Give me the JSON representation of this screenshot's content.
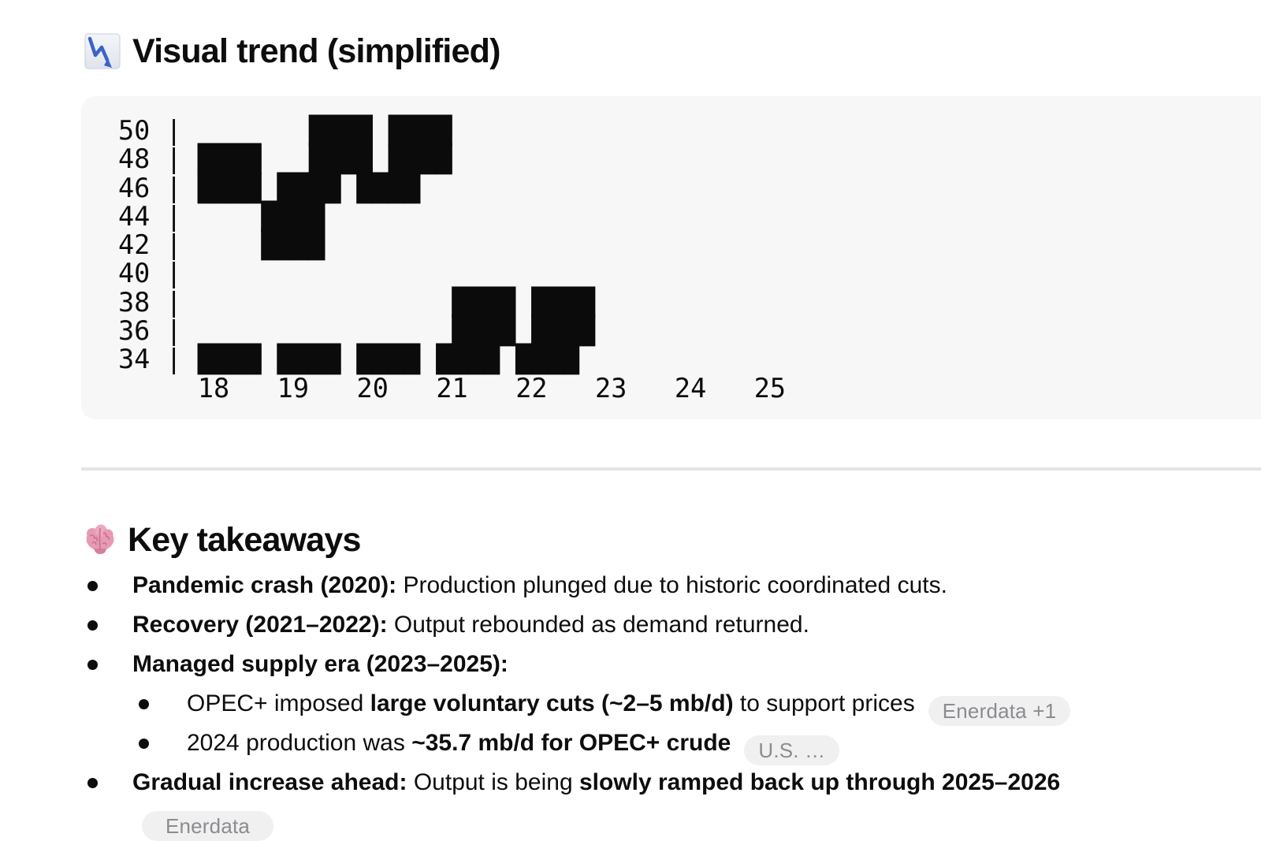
{
  "page": {
    "background": "#ffffff",
    "text_color": "#0d0d0d",
    "divider_color": "#e4e4e6"
  },
  "trend_section": {
    "icon": "chart-decreasing",
    "title": "Visual trend (simplified)",
    "code_block": {
      "background": "#f7f7f8",
      "lines": [
        "50 |        ████ ████",
        "48 | ████   ████ ████",
        "46 | ████ ████ ████",
        "44 |     ████",
        "42 |     ████",
        "40 |",
        "38 |                 ████ ████",
        "36 |                 ████ ████",
        "34 | ████ ████ ████ ████ ████",
        "     18   19   20   21   22   23   24   25"
      ]
    }
  },
  "chart_data": {
    "type": "heatmap",
    "title": "Visual trend (simplified)",
    "y_ticks": [
      50,
      48,
      46,
      44,
      42,
      40,
      38,
      36,
      34
    ],
    "x_ticks": [
      18,
      19,
      20,
      21,
      22,
      23,
      24,
      25
    ],
    "x_tick_start_cols": [
      5,
      10,
      15,
      20,
      25,
      30,
      35,
      40
    ],
    "blocks_by_row": [
      {
        "y": 50,
        "col_spans": [
          [
            12,
            15
          ],
          [
            17,
            20
          ]
        ]
      },
      {
        "y": 48,
        "col_spans": [
          [
            5,
            8
          ],
          [
            12,
            15
          ],
          [
            17,
            20
          ]
        ]
      },
      {
        "y": 46,
        "col_spans": [
          [
            5,
            8
          ],
          [
            10,
            13
          ],
          [
            15,
            18
          ]
        ]
      },
      {
        "y": 44,
        "col_spans": [
          [
            9,
            12
          ]
        ]
      },
      {
        "y": 42,
        "col_spans": [
          [
            9,
            12
          ]
        ]
      },
      {
        "y": 40,
        "col_spans": []
      },
      {
        "y": 38,
        "col_spans": [
          [
            21,
            24
          ],
          [
            26,
            29
          ]
        ]
      },
      {
        "y": 36,
        "col_spans": [
          [
            21,
            24
          ],
          [
            26,
            29
          ]
        ]
      },
      {
        "y": 34,
        "col_spans": [
          [
            5,
            8
          ],
          [
            10,
            13
          ],
          [
            15,
            18
          ],
          [
            20,
            23
          ],
          [
            25,
            28
          ]
        ]
      }
    ]
  },
  "takeaways_section": {
    "icon": "brain",
    "title": "Key takeaways",
    "bullets": [
      {
        "level": 1,
        "segments": [
          {
            "text": "Pandemic crash (2020):",
            "bold": true
          },
          {
            "text": " Production plunged due to historic coordinated cuts.",
            "bold": false
          }
        ]
      },
      {
        "level": 1,
        "segments": [
          {
            "text": "Recovery (2021–2022):",
            "bold": true
          },
          {
            "text": " Output rebounded as demand returned.",
            "bold": false
          }
        ]
      },
      {
        "level": 1,
        "segments": [
          {
            "text": "Managed supply era (2023–2025):",
            "bold": true
          }
        ]
      },
      {
        "level": 2,
        "segments": [
          {
            "text": "OPEC+ imposed ",
            "bold": false
          },
          {
            "text": "large voluntary cuts (~2–5 mb/d)",
            "bold": true
          },
          {
            "text": " to support prices",
            "bold": false
          }
        ],
        "badge": "Enerdata +1"
      },
      {
        "level": 2,
        "segments": [
          {
            "text": "2024 production was ",
            "bold": false
          },
          {
            "text": "~35.7 mb/d for OPEC+ crude",
            "bold": true
          }
        ],
        "badge": "U.S. …"
      },
      {
        "level": 1,
        "segments": [
          {
            "text": "Gradual increase ahead:",
            "bold": true
          },
          {
            "text": " Output is being ",
            "bold": false
          },
          {
            "text": "slowly ramped back up through 2025–2026",
            "bold": true
          }
        ]
      }
    ],
    "partial_badge": "Enerdata"
  },
  "badge_style": {
    "background": "#f0f0f1",
    "text_color": "#8c8c90"
  }
}
